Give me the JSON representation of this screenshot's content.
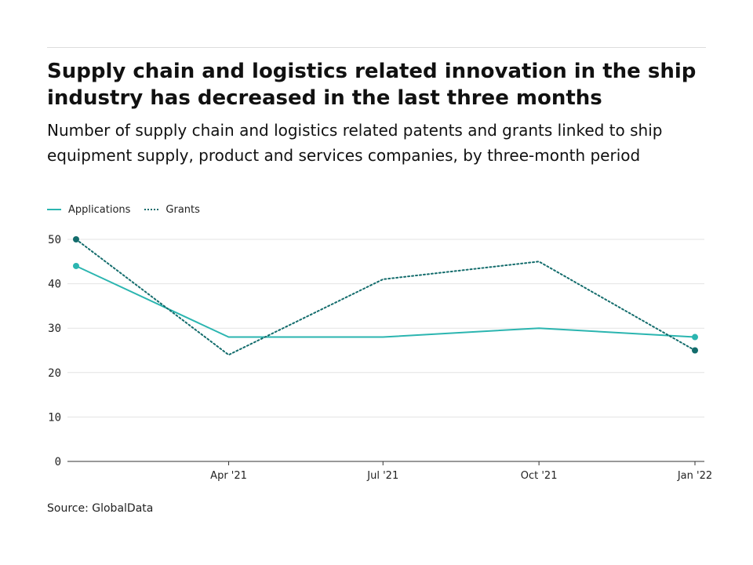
{
  "header": {
    "title": "Supply chain and logistics related innovation in the ship industry has decreased in the last three months",
    "subtitle": "Number of supply chain and logistics related patents and grants linked to ship equipment supply, product and services companies, by three-month period"
  },
  "footer": {
    "source": "Source: GlobalData"
  },
  "colors": {
    "applications": "#2bb5b0",
    "grants": "#136c6c",
    "grid": "#e3e3e3",
    "axis": "#333333"
  },
  "chart_data": {
    "type": "line",
    "title": "Supply chain and logistics related innovation in the ship industry has decreased in the last three months",
    "subtitle": "Number of supply chain and logistics related patents and grants linked to ship equipment supply, product and services companies, by three-month period",
    "xlabel": "",
    "ylabel": "",
    "x": [
      "2021-01",
      "2021-04",
      "2021-07",
      "2021-10",
      "2022-01"
    ],
    "x_ticks": [
      "Apr '21",
      "Jul '21",
      "Oct '21",
      "Jan '22"
    ],
    "ylim": [
      0,
      50
    ],
    "y_ticks": [
      "0",
      "10",
      "20",
      "30",
      "40",
      "50"
    ],
    "grid": true,
    "legend": "top-left",
    "series": [
      {
        "name": "Applications",
        "style": "solid",
        "color": "#2bb5b0",
        "values": [
          44,
          28,
          28,
          30,
          28
        ]
      },
      {
        "name": "Grants",
        "style": "dotted",
        "color": "#136c6c",
        "values": [
          50,
          24,
          41,
          45,
          25
        ]
      }
    ]
  }
}
